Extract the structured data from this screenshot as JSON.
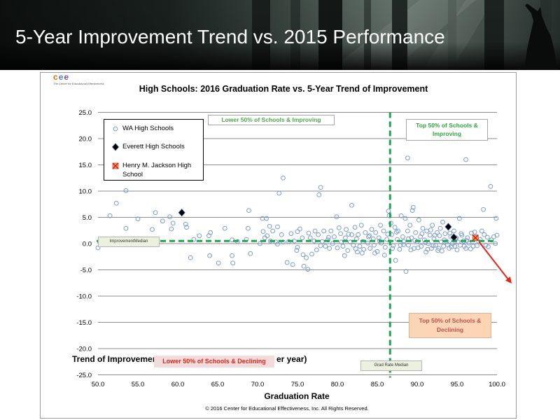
{
  "banner": {
    "title": "5-Year Improvement Trend vs. 2015 Performance"
  },
  "logo": {
    "letters": [
      "c",
      "e",
      "e"
    ],
    "tagline": "The Center for Educational Effectiveness",
    "colors": [
      "#e46c0a",
      "#4f81bd",
      "#7f4f9f"
    ]
  },
  "chart_data": {
    "type": "scatter",
    "title": "High Schools: 2016 Graduation Rate vs. 5-Year Trend of Improvement",
    "xlabel": "Graduation Rate",
    "ylabel_parts": [
      "Trend of Improvement (",
      "er year)"
    ],
    "xlim": [
      50,
      100
    ],
    "ylim": [
      -25,
      25
    ],
    "x_ticks": [
      "50.0",
      "55.0",
      "60.0",
      "65.0",
      "70.0",
      "75.0",
      "80.0",
      "85.0",
      "90.0",
      "95.0",
      "100.0"
    ],
    "y_ticks": [
      "25.0",
      "20.0",
      "15.0",
      "10.0",
      "5.0",
      "0.0",
      "-5.0",
      "-10.0",
      "-15.0",
      "-20.0",
      "-25.0"
    ],
    "grid": "horizontal",
    "legend_position": "top-left",
    "series": [
      {
        "name": "WA High Schools",
        "marker": "circle",
        "color": "#7b9bd1",
        "points": [
          [
            50.0,
            -0.8
          ],
          [
            50.2,
            0.3
          ],
          [
            51.5,
            5.3
          ],
          [
            52.3,
            7.7
          ],
          [
            53.5,
            10.1
          ],
          [
            53.5,
            2.9
          ],
          [
            55.0,
            4.7
          ],
          [
            56.8,
            2.7
          ],
          [
            57.2,
            5.9
          ],
          [
            58.1,
            4.3
          ],
          [
            59.0,
            5.1
          ],
          [
            59.2,
            2.8
          ],
          [
            59.4,
            3.9
          ],
          [
            61.0,
            3.7
          ],
          [
            61.1,
            3.1
          ],
          [
            61.6,
            -2.7
          ],
          [
            62.0,
            0.8
          ],
          [
            62.7,
            1.5
          ],
          [
            63.9,
            1.5
          ],
          [
            64.1,
            2.1
          ],
          [
            64.0,
            -2.3
          ],
          [
            65.1,
            -3.7
          ],
          [
            65.9,
            2.9
          ],
          [
            66.8,
            -2.3
          ],
          [
            66.8,
            0.7
          ],
          [
            66.9,
            -3.7
          ],
          [
            67.5,
            0.4
          ],
          [
            68.6,
            0.8
          ],
          [
            68.8,
            2.9
          ],
          [
            68.9,
            6.3
          ],
          [
            69.1,
            -1.9
          ],
          [
            70.3,
            0.0
          ],
          [
            70.6,
            4.8
          ],
          [
            70.7,
            2.3
          ],
          [
            70.9,
            1.1
          ],
          [
            71.1,
            4.8
          ],
          [
            71.2,
            1.5
          ],
          [
            71.5,
            3.3
          ],
          [
            71.6,
            0.5
          ],
          [
            71.9,
            2.4
          ],
          [
            72.3,
            0.3
          ],
          [
            72.5,
            -0.1
          ],
          [
            72.5,
            3.2
          ],
          [
            72.7,
            9.6
          ],
          [
            73.0,
            1.7
          ],
          [
            73.2,
            12.5
          ],
          [
            73.2,
            0.3
          ],
          [
            73.7,
            -3.6
          ],
          [
            73.9,
            0.4
          ],
          [
            74.2,
            1.9
          ],
          [
            74.4,
            -4.0
          ],
          [
            74.6,
            0.5
          ],
          [
            74.9,
            -1.3
          ],
          [
            75.0,
            2.3
          ],
          [
            75.0,
            -0.7
          ],
          [
            75.3,
            2.8
          ],
          [
            75.6,
            1.1
          ],
          [
            75.7,
            -2.1
          ],
          [
            75.8,
            -4.3
          ],
          [
            76.1,
            -2.7
          ],
          [
            76.3,
            -4.9
          ],
          [
            76.4,
            2.0
          ],
          [
            76.6,
            1.1
          ],
          [
            76.8,
            -2.0
          ],
          [
            77.1,
            0.5
          ],
          [
            77.2,
            2.4
          ],
          [
            77.4,
            -1.2
          ],
          [
            77.6,
            1.7
          ],
          [
            77.7,
            9.3
          ],
          [
            77.9,
            10.7
          ],
          [
            77.9,
            -0.4
          ],
          [
            78.1,
            0.4
          ],
          [
            78.3,
            2.4
          ],
          [
            78.5,
            -0.5
          ],
          [
            78.8,
            0.7
          ],
          [
            78.9,
            1.2
          ],
          [
            79.0,
            -0.9
          ],
          [
            79.2,
            2.4
          ],
          [
            79.4,
            0.0
          ],
          [
            79.6,
            1.3
          ],
          [
            79.9,
            5.1
          ],
          [
            80.0,
            -0.8
          ],
          [
            80.2,
            3.0
          ],
          [
            80.4,
            1.9
          ],
          [
            80.5,
            0.3
          ],
          [
            80.7,
            -0.5
          ],
          [
            80.9,
            -2.3
          ],
          [
            81.0,
            1.1
          ],
          [
            81.1,
            2.7
          ],
          [
            81.3,
            -1.3
          ],
          [
            81.4,
            1.8
          ],
          [
            81.6,
            0.3
          ],
          [
            81.8,
            1.7
          ],
          [
            81.8,
            7.3
          ],
          [
            82.0,
            -0.3
          ],
          [
            82.2,
            3.1
          ],
          [
            82.3,
            -1.0
          ],
          [
            82.4,
            0.9
          ],
          [
            82.5,
            -1.6
          ],
          [
            82.6,
            1.7
          ],
          [
            82.8,
            -0.5
          ],
          [
            83.0,
            3.5
          ],
          [
            83.1,
            -1.8
          ],
          [
            83.2,
            0.4
          ],
          [
            83.3,
            -1.1
          ],
          [
            83.5,
            2.1
          ],
          [
            83.8,
            0.1
          ],
          [
            83.9,
            1.3
          ],
          [
            84.0,
            1.5
          ],
          [
            84.1,
            -0.9
          ],
          [
            84.3,
            2.7
          ],
          [
            84.5,
            0.9
          ],
          [
            84.6,
            -0.3
          ],
          [
            84.7,
            -1.8
          ],
          [
            84.8,
            2.1
          ],
          [
            85.0,
            -1.5
          ],
          [
            85.2,
            1.1
          ],
          [
            85.3,
            0.5
          ],
          [
            85.4,
            3.5
          ],
          [
            85.5,
            0.1
          ],
          [
            85.8,
            2.4
          ],
          [
            85.9,
            -2.2
          ],
          [
            86.0,
            -0.7
          ],
          [
            86.2,
            0.8
          ],
          [
            86.3,
            1.8
          ],
          [
            86.4,
            6.2
          ],
          [
            86.5,
            5.3
          ],
          [
            86.7,
            3.9
          ],
          [
            86.8,
            1.7
          ],
          [
            86.9,
            -0.9
          ],
          [
            87.0,
            -0.4
          ],
          [
            87.2,
            3.1
          ],
          [
            87.3,
            -3.2
          ],
          [
            87.4,
            2.2
          ],
          [
            87.5,
            0.8
          ],
          [
            87.6,
            2.4
          ],
          [
            87.8,
            -1.1
          ],
          [
            87.9,
            -0.3
          ],
          [
            88.0,
            5.3
          ],
          [
            88.2,
            1.3
          ],
          [
            88.3,
            0.4
          ],
          [
            88.3,
            -0.2
          ],
          [
            88.5,
            4.8
          ],
          [
            88.6,
            -5.3
          ],
          [
            88.8,
            16.3
          ],
          [
            88.8,
            2.4
          ],
          [
            88.9,
            -0.3
          ],
          [
            88.9,
            0.9
          ],
          [
            89.1,
            3.5
          ],
          [
            89.2,
            -1.2
          ],
          [
            89.3,
            1.1
          ],
          [
            89.4,
            6.3
          ],
          [
            89.5,
            6.9
          ],
          [
            89.6,
            -0.9
          ],
          [
            89.7,
            0.6
          ],
          [
            89.8,
            2.1
          ],
          [
            90.0,
            0.4
          ],
          [
            90.1,
            -0.8
          ],
          [
            90.2,
            4.5
          ],
          [
            90.4,
            1.3
          ],
          [
            90.5,
            -0.5
          ],
          [
            90.6,
            1.9
          ],
          [
            90.7,
            2.9
          ],
          [
            90.9,
            0.7
          ],
          [
            91.0,
            0.2
          ],
          [
            91.1,
            -1.6
          ],
          [
            91.2,
            2.4
          ],
          [
            91.3,
            -1.1
          ],
          [
            91.4,
            0.0
          ],
          [
            91.6,
            1.6
          ],
          [
            91.7,
            2.6
          ],
          [
            91.8,
            -0.9
          ],
          [
            91.9,
            3.5
          ],
          [
            92.0,
            -0.4
          ],
          [
            92.1,
            0.9
          ],
          [
            92.2,
            1.6
          ],
          [
            92.3,
            -0.3
          ],
          [
            92.5,
            2.1
          ],
          [
            92.6,
            -1.3
          ],
          [
            92.7,
            -0.9
          ],
          [
            92.8,
            1.5
          ],
          [
            92.9,
            2.9
          ],
          [
            93.0,
            0.3
          ],
          [
            93.1,
            -1.4
          ],
          [
            93.2,
            4.1
          ],
          [
            93.3,
            -0.5
          ],
          [
            93.4,
            0.7
          ],
          [
            93.5,
            1.9
          ],
          [
            93.7,
            0.4
          ],
          [
            93.8,
            -0.2
          ],
          [
            94.0,
            -0.9
          ],
          [
            94.1,
            2.0
          ],
          [
            94.2,
            1.3
          ],
          [
            94.3,
            -0.6
          ],
          [
            94.4,
            0.0
          ],
          [
            94.6,
            2.4
          ],
          [
            94.7,
            -0.5
          ],
          [
            94.8,
            0.9
          ],
          [
            94.9,
            1.1
          ],
          [
            95.0,
            -1.2
          ],
          [
            95.1,
            0.3
          ],
          [
            95.3,
            4.8
          ],
          [
            95.4,
            -0.3
          ],
          [
            95.5,
            1.9
          ],
          [
            95.6,
            1.6
          ],
          [
            95.8,
            0.5
          ],
          [
            95.9,
            -0.5
          ],
          [
            96.1,
            16.0
          ],
          [
            96.1,
            -0.9
          ],
          [
            96.2,
            0.6
          ],
          [
            96.3,
            1.1
          ],
          [
            96.5,
            0.1
          ],
          [
            96.7,
            -1.0
          ],
          [
            96.8,
            2.0
          ],
          [
            97.0,
            -0.5
          ],
          [
            97.2,
            2.2
          ],
          [
            97.4,
            1.3
          ],
          [
            97.5,
            -0.4
          ],
          [
            97.7,
            0.4
          ],
          [
            97.9,
            0.8
          ],
          [
            98.1,
            2.4
          ],
          [
            98.3,
            6.5
          ],
          [
            98.4,
            1.7
          ],
          [
            98.6,
            -0.3
          ],
          [
            98.8,
            1.2
          ],
          [
            98.9,
            -0.6
          ],
          [
            99.2,
            10.9
          ],
          [
            99.3,
            0.7
          ],
          [
            99.6,
            1.3
          ],
          [
            99.8,
            0.0
          ],
          [
            99.9,
            4.8
          ],
          [
            100.0,
            1.6
          ]
        ]
      },
      {
        "name": "Everett High Schools",
        "marker": "diamond",
        "color": "#000000",
        "points": [
          [
            60.5,
            5.9
          ],
          [
            93.9,
            3.2
          ],
          [
            94.6,
            1.2
          ]
        ]
      },
      {
        "name": "Henry M. Jackson High School",
        "marker": "square-x",
        "color": "#f79646",
        "points": [
          [
            97.3,
            1.1
          ]
        ]
      }
    ],
    "reference_lines": {
      "grad_rate_median_x": 86.6,
      "improvement_median_y": 0.5,
      "color": "#1fa54e"
    },
    "annotations": {
      "lower_improving": "Lower 50% of Schools & Improving",
      "top_improving": "Top 50% of Schools & Improving",
      "top_declining": "Top 50% of Schools & Declining",
      "lower_declining": "Lower 50% of Schools & Declining",
      "improvement_median_label": "ImprovementMedian",
      "grad_rate_median_label": "Grad Rate Median",
      "arrow_color": "#e8231c"
    }
  },
  "footer": "© 2016 Center for Educational Effectiveness, Inc. All Rights Reserved."
}
